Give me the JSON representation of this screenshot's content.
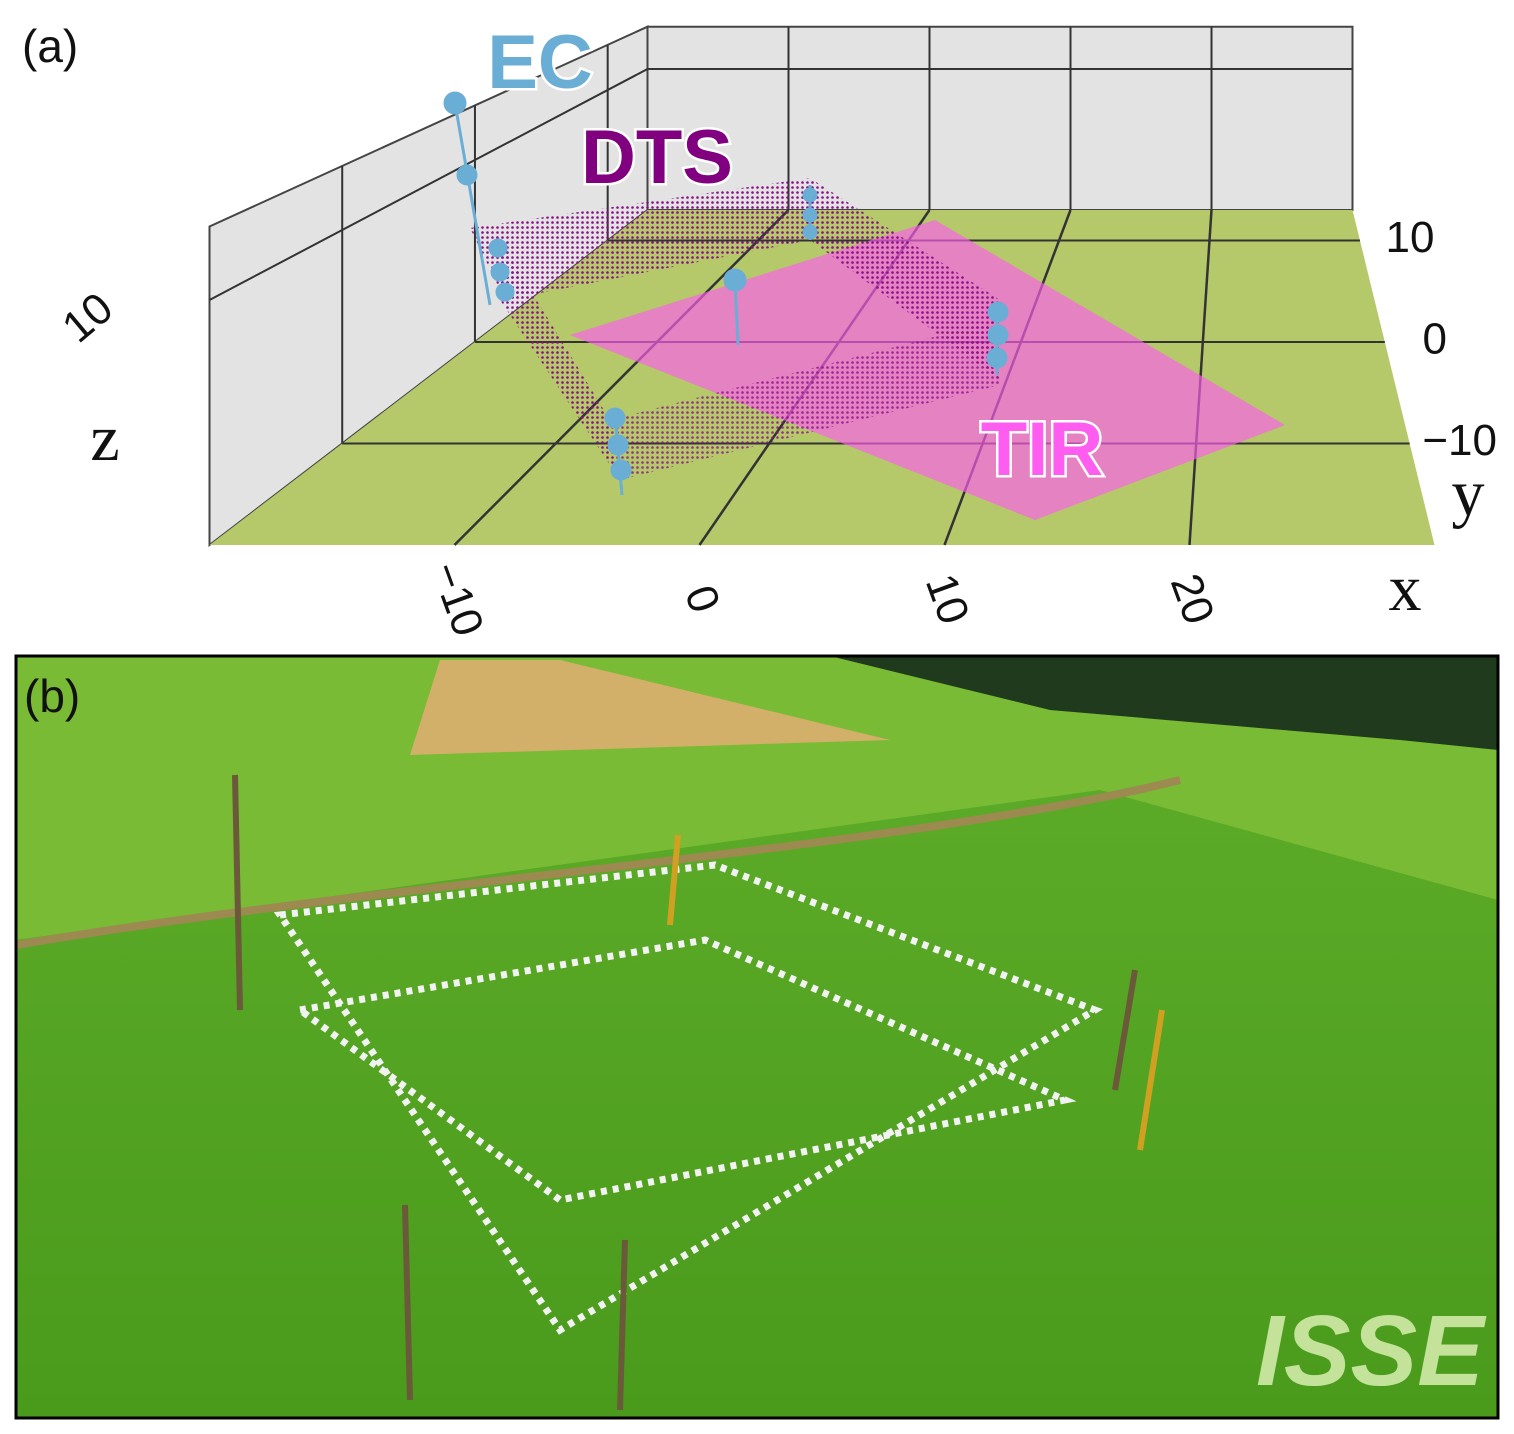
{
  "panel_a": {
    "label": "(a)",
    "legend": {
      "ec": "EC",
      "dts": "DTS",
      "tir": "TIR"
    },
    "axes": {
      "x": {
        "label": "x",
        "lim": [
          -20,
          30
        ],
        "ticks": [
          {
            "value": -10,
            "label": "−10"
          },
          0,
          10,
          20
        ]
      },
      "y": {
        "label": "y",
        "lim": [
          -20,
          13
        ],
        "ticks": [
          10,
          0,
          {
            "value": -10,
            "label": "−10"
          }
        ]
      },
      "z": {
        "label": "z",
        "lim": [
          0,
          13
        ],
        "ticks": [
          10
        ]
      }
    }
  },
  "panel_b": {
    "label": "(b)",
    "logo": "ISSE"
  }
}
